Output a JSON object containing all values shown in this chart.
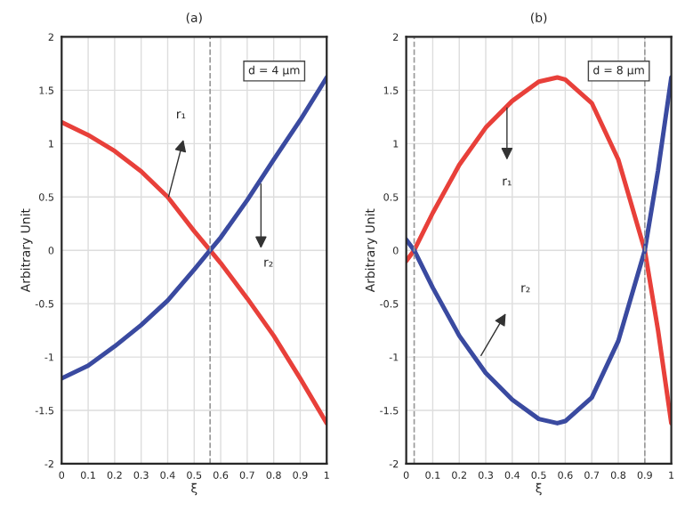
{
  "chart_data": [
    {
      "type": "line",
      "title": "(a)",
      "xlabel": "ξ",
      "ylabel": "Arbitrary Unit",
      "xlim": [
        0,
        1
      ],
      "ylim": [
        -2,
        2
      ],
      "xticks": [
        0,
        0.1,
        0.2,
        0.3,
        0.4,
        0.5,
        0.6,
        0.7,
        0.8,
        0.9,
        1
      ],
      "yticks": [
        -2,
        -1.5,
        -1,
        -0.5,
        0,
        0.5,
        1,
        1.5,
        2
      ],
      "grid": true,
      "x": [
        0,
        0.1,
        0.2,
        0.3,
        0.4,
        0.5,
        0.56,
        0.6,
        0.7,
        0.8,
        0.9,
        1
      ],
      "series": [
        {
          "color": "#e8403a",
          "values": [
            1.2,
            1.08,
            0.93,
            0.74,
            0.5,
            0.18,
            0,
            -0.12,
            -0.45,
            -0.8,
            -1.2,
            -1.62
          ]
        },
        {
          "color": "#3a4aa0",
          "values": [
            -1.2,
            -1.08,
            -0.9,
            -0.7,
            -0.47,
            -0.18,
            0,
            0.12,
            0.47,
            0.85,
            1.22,
            1.62
          ]
        }
      ],
      "ref_lines": [
        {
          "axis": "x",
          "value": 0.56,
          "line_style": "dashed",
          "color": "#999999"
        }
      ],
      "annotations": [
        "d = 4 μm",
        "r₁",
        "r₂"
      ]
    },
    {
      "type": "line",
      "title": "(b)",
      "xlabel": "ξ",
      "ylabel": "Arbitrary Unit",
      "xlim": [
        0,
        1
      ],
      "ylim": [
        -2,
        2
      ],
      "xticks": [
        0,
        0.1,
        0.2,
        0.3,
        0.4,
        0.5,
        0.6,
        0.7,
        0.8,
        0.9,
        1
      ],
      "yticks": [
        -2,
        -1.5,
        -1,
        -0.5,
        0,
        0.5,
        1,
        1.5,
        2
      ],
      "grid": true,
      "x": [
        0,
        0.03,
        0.1,
        0.2,
        0.3,
        0.4,
        0.5,
        0.57,
        0.6,
        0.7,
        0.8,
        0.9,
        0.95,
        1
      ],
      "series": [
        {
          "color": "#e8403a",
          "values": [
            -0.1,
            0,
            0.35,
            0.8,
            1.15,
            1.4,
            1.58,
            1.62,
            1.6,
            1.38,
            0.85,
            0,
            -0.75,
            -1.62
          ]
        },
        {
          "color": "#3a4aa0",
          "values": [
            0.1,
            0,
            -0.35,
            -0.8,
            -1.15,
            -1.4,
            -1.58,
            -1.62,
            -1.6,
            -1.38,
            -0.85,
            0,
            0.75,
            1.62
          ]
        }
      ],
      "ref_lines": [
        {
          "axis": "x",
          "value": 0.03,
          "line_style": "dashed",
          "color": "#999999"
        },
        {
          "axis": "x",
          "value": 0.9,
          "line_style": "dashed",
          "color": "#999999"
        }
      ],
      "annotations": [
        "d = 8 μm",
        "r₁",
        "r₂"
      ]
    }
  ]
}
